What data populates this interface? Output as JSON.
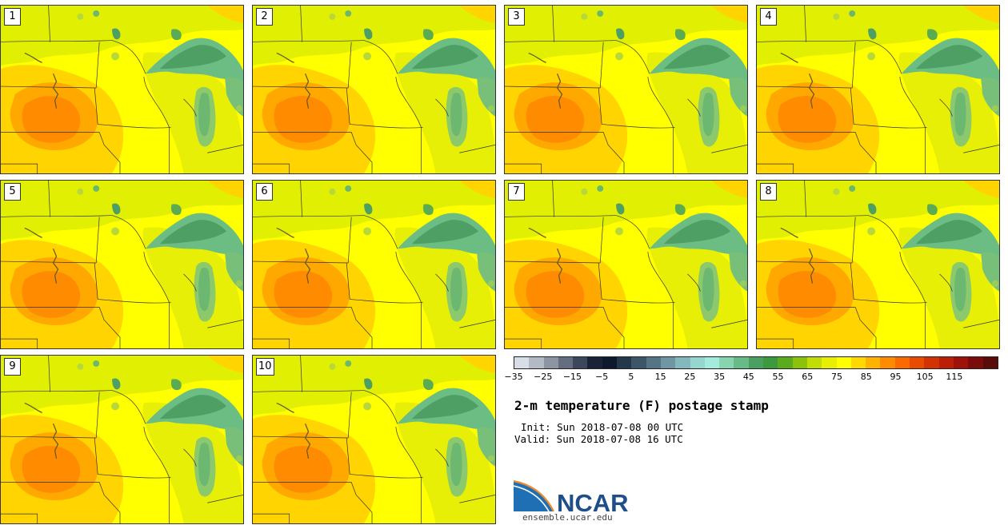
{
  "panels": [
    {
      "label": "1"
    },
    {
      "label": "2"
    },
    {
      "label": "3"
    },
    {
      "label": "4"
    },
    {
      "label": "5"
    },
    {
      "label": "6"
    },
    {
      "label": "7"
    },
    {
      "label": "8"
    },
    {
      "label": "9"
    },
    {
      "label": "10"
    }
  ],
  "colorbar": {
    "colors": [
      "#d9dee6",
      "#b4bac4",
      "#8d95a3",
      "#646e80",
      "#3c475c",
      "#1a2238",
      "#0d1a2e",
      "#24384c",
      "#3c5668",
      "#557585",
      "#6e97a3",
      "#83b8bd",
      "#95d6cf",
      "#a2ebdd",
      "#86d5af",
      "#67bb87",
      "#4aa060",
      "#3d9a3c",
      "#5aab1d",
      "#8cc20c",
      "#c2dc06",
      "#e8ef02",
      "#ffff00",
      "#ffd900",
      "#ffb300",
      "#ff8c00",
      "#fa6a00",
      "#e84c00",
      "#d23304",
      "#bb1f08",
      "#9e120a",
      "#7a0c0c",
      "#5a0a08"
    ],
    "ticks": [
      "−35",
      "−25",
      "−15",
      "−5",
      "5",
      "15",
      "25",
      "35",
      "45",
      "55",
      "65",
      "75",
      "85",
      "95",
      "105",
      "115"
    ]
  },
  "title": "2-m temperature (F) postage stamp",
  "init_line": "Init: Sun 2018-07-08 00 UTC",
  "valid_line": "Valid: Sun 2018-07-08 16 UTC",
  "logo_text": "NCAR",
  "url": "ensemble.ucar.edu"
}
